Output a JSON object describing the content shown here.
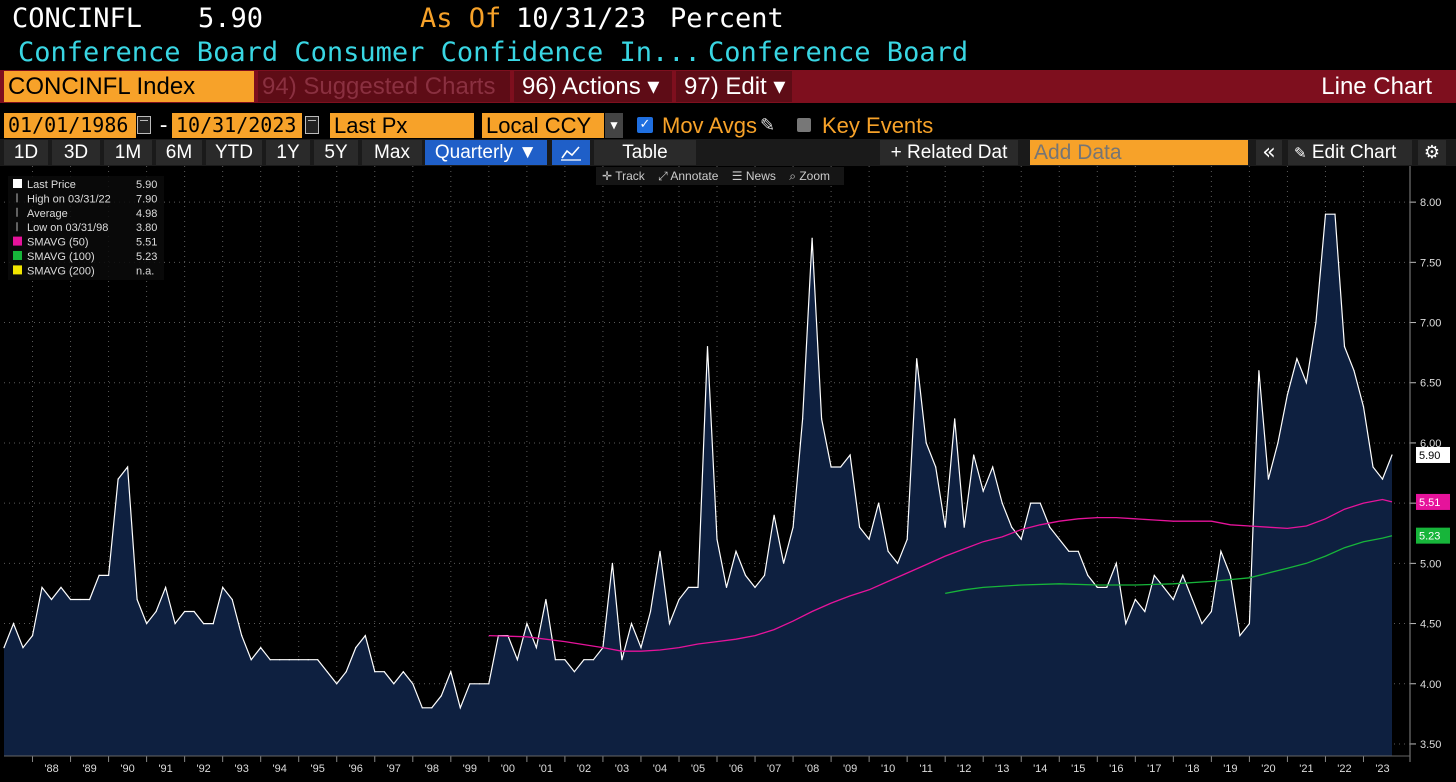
{
  "header": {
    "ticker": "CONCINFL",
    "value": "5.90",
    "as_of_label": "As Of",
    "as_of_date": "10/31/23",
    "unit": "Percent",
    "description": "Conference Board Consumer Confidence In...",
    "source": "Conference Board"
  },
  "menu": {
    "security": "CONCINFL Index",
    "suggested": "94) Suggested Charts",
    "actions": "96) Actions ▾",
    "edit": "97) Edit ▾",
    "chart_type": "Line Chart"
  },
  "controls": {
    "start_date": "01/01/1986",
    "dash": "-",
    "end_date": "10/31/2023",
    "field": "Last Px",
    "currency": "Local CCY",
    "mov_avgs": "Mov Avgs",
    "key_events": "Key Events",
    "mov_avgs_checked": true,
    "key_events_checked": false
  },
  "toolbar": {
    "periods": [
      "1D",
      "3D",
      "1M",
      "6M",
      "YTD",
      "1Y",
      "5Y",
      "Max"
    ],
    "frequency": "Quarterly ▼",
    "table": "Table",
    "related": "+ Related Dat",
    "add_data_placeholder": "Add Data",
    "collapse": "«",
    "edit_chart": "Edit Chart",
    "sub": [
      "Track",
      "Annotate",
      "News",
      "Zoom"
    ]
  },
  "legend": [
    {
      "label": "Last Price",
      "value": "5.90",
      "color": "#ffffff"
    },
    {
      "label": "High on 03/31/22",
      "value": "7.90",
      "color": "#bbbbbb"
    },
    {
      "label": "Average",
      "value": "4.98",
      "color": "#bbbbbb"
    },
    {
      "label": "Low on 03/31/98",
      "value": "3.80",
      "color": "#bbbbbb"
    },
    {
      "label": "SMAVG (50)",
      "value": "5.51",
      "color": "#e6139b"
    },
    {
      "label": "SMAVG (100)",
      "value": "5.23",
      "color": "#17b53a"
    },
    {
      "label": "SMAVG (200)",
      "value": "n.a.",
      "color": "#f2e600"
    }
  ],
  "colors": {
    "background": "#000000",
    "area_fill": "#0e2040",
    "price_line": "#ffffff",
    "sma50": "#e6139b",
    "sma100": "#17b53a",
    "orange": "#f7a229",
    "menu_red": "#7e0f1e",
    "cyan": "#39d6e3",
    "blue_btn": "#1f5fc8"
  },
  "chart_data": {
    "type": "area",
    "x_start": 1987.25,
    "x_step": 0.25,
    "y": [
      4.3,
      4.5,
      4.3,
      4.4,
      4.8,
      4.7,
      4.8,
      4.7,
      4.7,
      4.7,
      4.9,
      4.9,
      5.7,
      5.8,
      4.7,
      4.5,
      4.6,
      4.8,
      4.5,
      4.6,
      4.6,
      4.5,
      4.5,
      4.8,
      4.7,
      4.4,
      4.2,
      4.3,
      4.2,
      4.2,
      4.2,
      4.2,
      4.2,
      4.2,
      4.1,
      4.0,
      4.1,
      4.3,
      4.4,
      4.1,
      4.1,
      4.0,
      4.1,
      4.0,
      3.8,
      3.8,
      3.9,
      4.1,
      3.8,
      4.0,
      4.0,
      4.0,
      4.4,
      4.4,
      4.2,
      4.5,
      4.3,
      4.7,
      4.2,
      4.2,
      4.1,
      4.2,
      4.2,
      4.3,
      5.0,
      4.2,
      4.5,
      4.3,
      4.6,
      5.1,
      4.5,
      4.7,
      4.8,
      4.8,
      6.8,
      5.2,
      4.8,
      5.1,
      4.9,
      4.8,
      4.9,
      5.4,
      5.0,
      5.3,
      6.2,
      7.7,
      6.2,
      5.8,
      5.8,
      5.9,
      5.3,
      5.2,
      5.5,
      5.1,
      5.0,
      5.2,
      6.7,
      6.0,
      5.8,
      5.3,
      6.2,
      5.3,
      5.9,
      5.6,
      5.8,
      5.5,
      5.3,
      5.2,
      5.5,
      5.5,
      5.3,
      5.2,
      5.1,
      5.1,
      4.9,
      4.8,
      4.8,
      5.0,
      4.5,
      4.7,
      4.6,
      4.9,
      4.8,
      4.7,
      4.9,
      4.7,
      4.5,
      4.6,
      5.1,
      4.9,
      4.4,
      4.5,
      6.6,
      5.7,
      6.0,
      6.4,
      6.7,
      6.5,
      7.0,
      7.9,
      7.9,
      6.8,
      6.6,
      6.3,
      5.8,
      5.7,
      5.9
    ],
    "sma50": {
      "x": [
        2000.0,
        2001.0,
        2002.0,
        2003.0,
        2003.5,
        2004.0,
        2004.5,
        2005.0,
        2005.5,
        2006.0,
        2006.5,
        2007.0,
        2007.5,
        2008.0,
        2008.5,
        2009.0,
        2009.5,
        2010.0,
        2010.5,
        2011.0,
        2011.5,
        2012.0,
        2012.5,
        2013.0,
        2013.5,
        2014.0,
        2014.5,
        2015.0,
        2015.5,
        2016.0,
        2016.5,
        2017.0,
        2017.5,
        2018.0,
        2018.5,
        2019.0,
        2019.5,
        2020.0,
        2020.5,
        2021.0,
        2021.5,
        2022.0,
        2022.5,
        2023.0,
        2023.5,
        2023.75
      ],
      "y": [
        4.4,
        4.39,
        4.35,
        4.3,
        4.27,
        4.27,
        4.28,
        4.3,
        4.33,
        4.35,
        4.37,
        4.4,
        4.45,
        4.52,
        4.6,
        4.67,
        4.73,
        4.78,
        4.85,
        4.92,
        4.99,
        5.06,
        5.12,
        5.18,
        5.22,
        5.28,
        5.32,
        5.35,
        5.37,
        5.38,
        5.38,
        5.37,
        5.36,
        5.35,
        5.35,
        5.35,
        5.32,
        5.31,
        5.3,
        5.29,
        5.31,
        5.37,
        5.45,
        5.5,
        5.53,
        5.51
      ]
    },
    "sma100": {
      "x": [
        2012.0,
        2012.5,
        2013.0,
        2014.0,
        2015.0,
        2016.0,
        2017.0,
        2018.0,
        2019.0,
        2020.0,
        2020.5,
        2021.0,
        2021.5,
        2022.0,
        2022.5,
        2023.0,
        2023.5,
        2023.75
      ],
      "y": [
        4.75,
        4.78,
        4.8,
        4.82,
        4.83,
        4.82,
        4.82,
        4.83,
        4.85,
        4.88,
        4.92,
        4.96,
        5.0,
        5.06,
        5.13,
        5.18,
        5.21,
        5.23
      ]
    },
    "y_ticks": [
      3.5,
      4.0,
      4.5,
      5.0,
      5.5,
      6.0,
      6.5,
      7.0,
      7.5,
      8.0
    ],
    "x_labels": [
      "'88",
      "'89",
      "'90",
      "'91",
      "'92",
      "'93",
      "'94",
      "'95",
      "'96",
      "'97",
      "'98",
      "'99",
      "'00",
      "'01",
      "'02",
      "'03",
      "'04",
      "'05",
      "'06",
      "'07",
      "'08",
      "'09",
      "'10",
      "'11",
      "'12",
      "'13",
      "'14",
      "'15",
      "'16",
      "'17",
      "'18",
      "'19",
      "'20",
      "'21",
      "'22",
      "'23"
    ],
    "xlim": [
      1987.25,
      2023.75
    ],
    "ylim": [
      3.4,
      8.3
    ],
    "last_value_label": "5.90",
    "sma50_label": "5.51",
    "sma100_label": "5.23",
    "grid": true
  }
}
